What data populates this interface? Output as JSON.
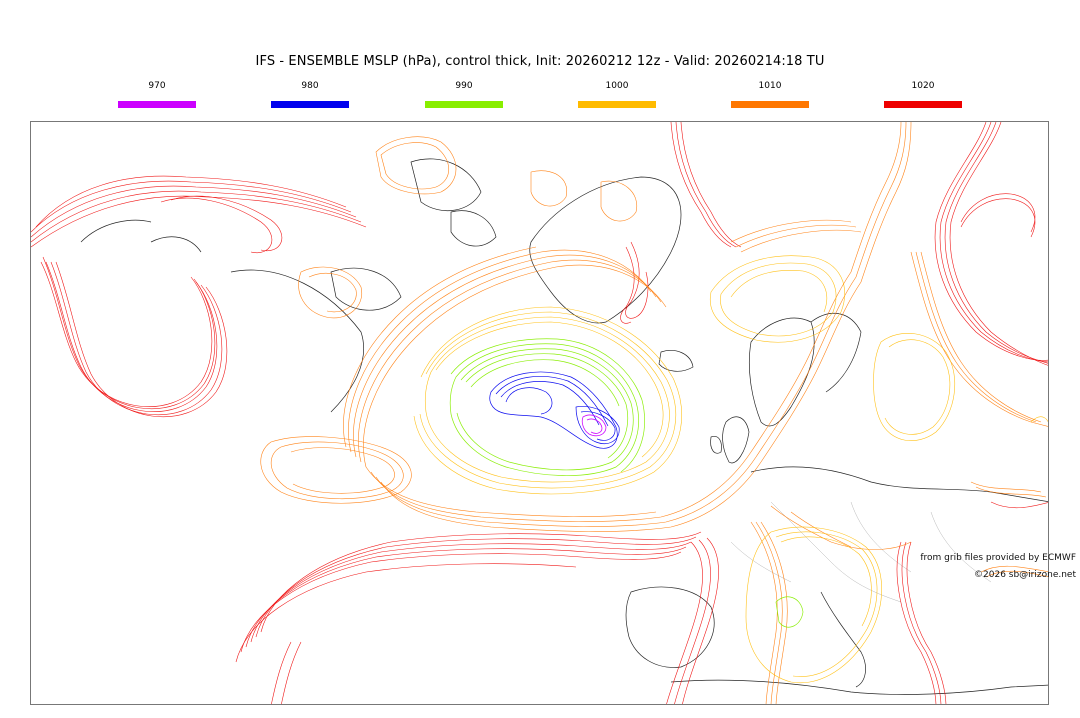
{
  "title": "IFS - ENSEMBLE MSLP (hPa), control thick, Init: 20260212 12z - Valid: 20260214:18 TU",
  "legend": [
    {
      "label": "970",
      "color": "#cc00ff"
    },
    {
      "label": "980",
      "color": "#0000ee"
    },
    {
      "label": "990",
      "color": "#88ee00"
    },
    {
      "label": "1000",
      "color": "#ffbb00"
    },
    {
      "label": "1010",
      "color": "#ff7700"
    },
    {
      "label": "1020",
      "color": "#ee0000"
    }
  ],
  "credits": {
    "data_source": "from grib files provided by ECMWF",
    "copyright": "©2026 sb@irizone.net"
  }
}
